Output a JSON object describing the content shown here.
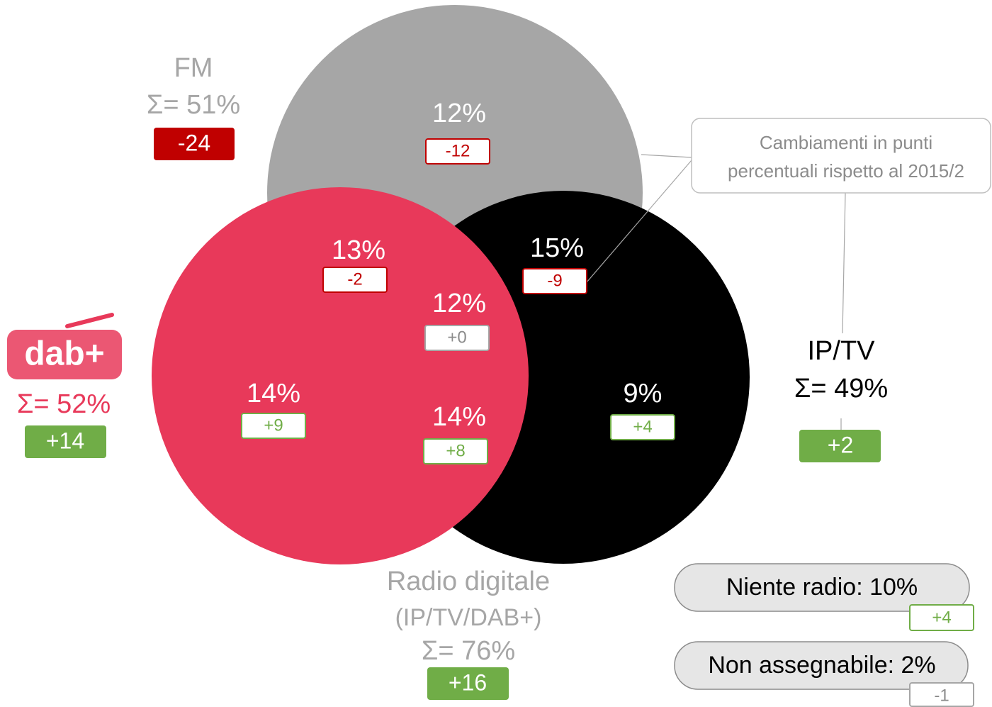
{
  "sets": [
    {
      "label": "FM",
      "sum": "Σ= 51%",
      "change": "-24"
    },
    {
      "label": "dab+",
      "sum": "Σ= 52%",
      "change": "+14"
    },
    {
      "label": "IP/TV",
      "sum": "Σ= 49%",
      "change": "+2"
    }
  ],
  "regions": [
    {
      "value": "12%",
      "change": "-12"
    },
    {
      "value": "13%",
      "change": "-2"
    },
    {
      "value": "15%",
      "change": "-9"
    },
    {
      "value": "12%",
      "change": "+0"
    },
    {
      "value": "14%",
      "change": "+9"
    },
    {
      "value": "14%",
      "change": "+8"
    },
    {
      "value": "9%",
      "change": "+4"
    }
  ],
  "note": [
    "Cambiamenti in punti",
    "percentuali rispetto al 2015/2"
  ],
  "digital": {
    "label": "Radio digitale",
    "sublabel": "(IP/TV/DAB+)",
    "sum": "Σ= 76%",
    "change": "+16"
  },
  "extras": [
    {
      "label": "Niente radio: 10%",
      "change": "+4"
    },
    {
      "label": "Non assegnabile: 2%",
      "change": "-1"
    }
  ]
}
